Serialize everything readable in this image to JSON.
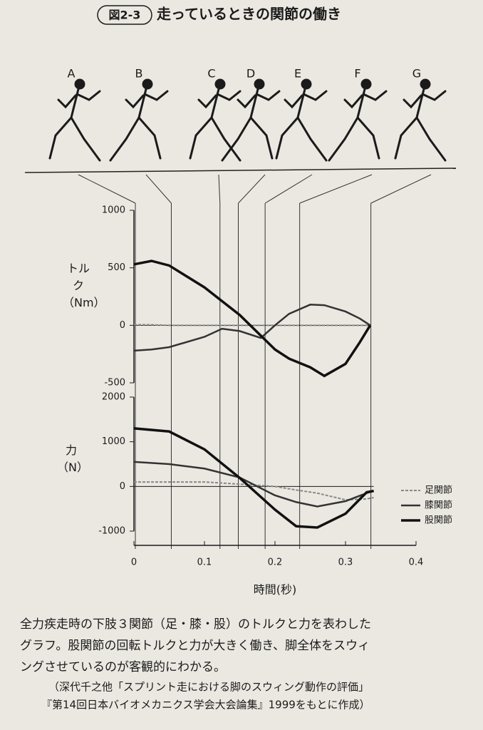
{
  "header": {
    "figure_label": "図2-3",
    "title": "走っているときの関節の働き"
  },
  "phases": {
    "labels": [
      "A",
      "B",
      "C",
      "D",
      "E",
      "F",
      "G"
    ],
    "times": [
      0.002,
      0.053,
      0.122,
      0.148,
      0.186,
      0.235,
      0.336
    ]
  },
  "chart_data": [
    {
      "type": "line",
      "y_label": "トルク（Nm）",
      "x": [
        0,
        0.025,
        0.05,
        0.1,
        0.125,
        0.15,
        0.18,
        0.2,
        0.22,
        0.25,
        0.27,
        0.3,
        0.32,
        0.335
      ],
      "xlim": [
        0,
        0.4
      ],
      "ylim": [
        -500,
        1000
      ],
      "yticks": [
        -500,
        0,
        500,
        1000
      ],
      "series": [
        {
          "color": "#888888",
          "dashed": true,
          "linewidth": 2,
          "values": [
            5,
            5,
            0,
            0,
            0,
            0,
            0,
            0,
            0,
            0,
            0,
            0,
            0,
            0
          ]
        },
        {
          "color": "#333333",
          "dashed": false,
          "linewidth": 2.5,
          "values": [
            -220,
            -210,
            -190,
            -100,
            -30,
            -50,
            -110,
            0,
            100,
            180,
            175,
            120,
            60,
            0
          ]
        },
        {
          "color": "#111111",
          "dashed": false,
          "linewidth": 3.5,
          "values": [
            530,
            560,
            520,
            330,
            210,
            90,
            -90,
            -210,
            -290,
            -365,
            -440,
            -335,
            -150,
            0
          ]
        }
      ]
    },
    {
      "type": "line",
      "y_label": "力（N）",
      "x_label": "時間(秒)",
      "x": [
        0,
        0.05,
        0.1,
        0.15,
        0.2,
        0.23,
        0.26,
        0.3,
        0.33,
        0.34
      ],
      "xlim": [
        0,
        0.4
      ],
      "xticks": [
        0,
        0.1,
        0.2,
        0.3,
        0.4
      ],
      "ylim": [
        -1000,
        2000
      ],
      "yticks": [
        -1000,
        0,
        1000,
        2000
      ],
      "series": [
        {
          "name": "足関節",
          "color": "#888888",
          "dashed": true,
          "linewidth": 2,
          "values": [
            100,
            100,
            100,
            50,
            0,
            -80,
            -150,
            -300,
            -280,
            -250
          ]
        },
        {
          "name": "膝関節",
          "color": "#333333",
          "dashed": false,
          "linewidth": 2.5,
          "values": [
            550,
            500,
            400,
            200,
            -200,
            -350,
            -450,
            -330,
            -150,
            -100
          ]
        },
        {
          "name": "股関節",
          "color": "#111111",
          "dashed": false,
          "linewidth": 3.5,
          "values": [
            1300,
            1230,
            830,
            190,
            -520,
            -890,
            -920,
            -610,
            -130,
            -100
          ]
        }
      ],
      "legend": "lower right"
    }
  ],
  "caption": [
    "全力疾走時の下肢３関節（足・膝・股）のトルクと力を表わした",
    "グラフ。股関節の回転トルクと力が大きく働き、脚全体をスウィ",
    "ングさせているのが客観的にわかる。"
  ],
  "source": [
    "（深代千之他「スプリント走における脚のスウィング動作の評価」",
    "『第14回日本バイオメカニクス学会大会論集』1999をもとに作成）"
  ]
}
